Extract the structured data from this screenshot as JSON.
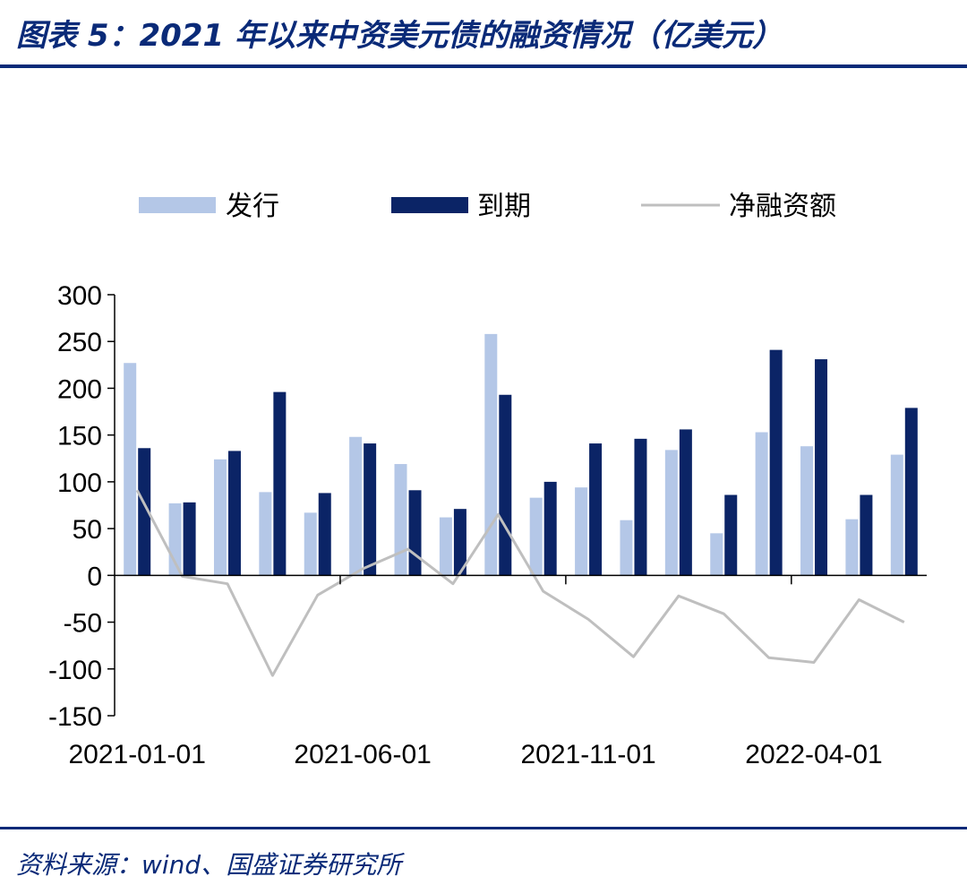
{
  "title": "图表 5：2021 年以来中资美元债的融资情况（亿美元）",
  "source": "资料来源：wind、国盛证券研究所",
  "colors": {
    "issuance": "#b4c7e7",
    "maturity": "#0b2466",
    "net": "#bfbfbf",
    "accent": "#0a2a78"
  },
  "chart_data": {
    "type": "bar",
    "categories": [
      "2021-01-01",
      "2021-02-01",
      "2021-03-01",
      "2021-04-01",
      "2021-05-01",
      "2021-06-01",
      "2021-07-01",
      "2021-08-01",
      "2021-09-01",
      "2021-10-01",
      "2021-11-01",
      "2021-12-01",
      "2022-01-01",
      "2022-02-01",
      "2022-03-01",
      "2022-04-01",
      "2022-05-01",
      "2022-06-01"
    ],
    "tick_labels": [
      "2021-01-01",
      "2021-06-01",
      "2021-11-01",
      "2022-04-01"
    ],
    "series": [
      {
        "name": "发行",
        "type": "bar",
        "values": [
          227,
          77,
          124,
          89,
          67,
          148,
          119,
          62,
          258,
          83,
          94,
          59,
          134,
          45,
          153,
          138,
          60,
          129
        ]
      },
      {
        "name": "到期",
        "type": "bar",
        "values": [
          136,
          78,
          133,
          196,
          88,
          141,
          91,
          71,
          193,
          100,
          141,
          146,
          156,
          86,
          241,
          231,
          86,
          179
        ]
      },
      {
        "name": "净融资额",
        "type": "line",
        "values": [
          91,
          -1,
          -9,
          -107,
          -21,
          7,
          28,
          -9,
          65,
          -17,
          -47,
          -87,
          -22,
          -41,
          -88,
          -93,
          -26,
          -50
        ]
      }
    ],
    "ylim": [
      -150,
      300
    ],
    "yticks": [
      -150,
      -100,
      -50,
      0,
      50,
      100,
      150,
      200,
      250,
      300
    ],
    "legend_position": "top",
    "xlabel": "",
    "ylabel": ""
  }
}
